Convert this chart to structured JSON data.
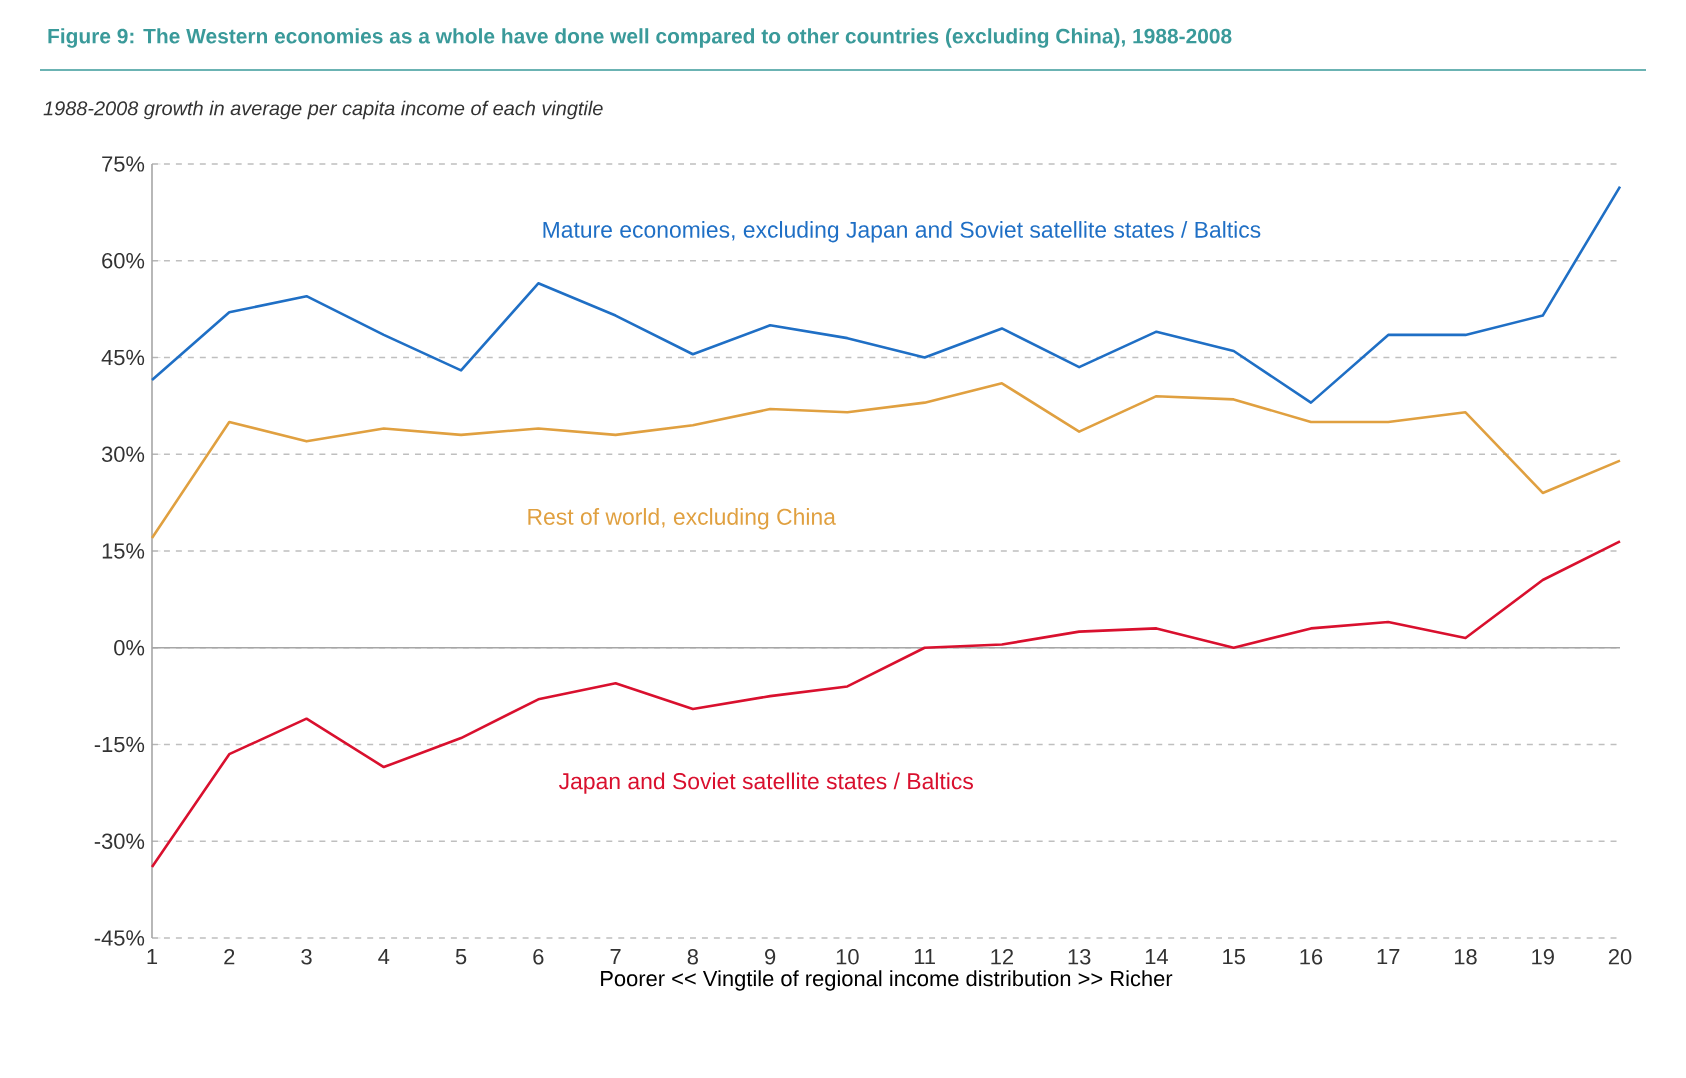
{
  "chart_data": {
    "type": "line",
    "title": "Figure 9:  The Western economies as a whole have done well compared to other countries (excluding China), 1988-2008",
    "subtitle": "1988-2008 growth in average per capita income of each vingtile",
    "xlabel": "Poorer    <<    Vingtile of regional income distribution    >>    Richer",
    "x": [
      1,
      2,
      3,
      4,
      5,
      6,
      7,
      8,
      9,
      10,
      11,
      12,
      13,
      14,
      15,
      16,
      17,
      18,
      19,
      20
    ],
    "xlim": [
      1,
      20
    ],
    "xticks": [
      1,
      2,
      3,
      4,
      5,
      6,
      7,
      8,
      9,
      10,
      11,
      12,
      13,
      14,
      15,
      16,
      17,
      18,
      19,
      20
    ],
    "ylim": [
      -45,
      75
    ],
    "yticks": [
      {
        "value": -45,
        "label": "-45%"
      },
      {
        "value": -30,
        "label": "-30%"
      },
      {
        "value": -15,
        "label": "-15%"
      },
      {
        "value": 0,
        "label": "0%"
      },
      {
        "value": 15,
        "label": "15%"
      },
      {
        "value": 30,
        "label": "30%"
      },
      {
        "value": 45,
        "label": "45%"
      },
      {
        "value": 60,
        "label": "60%"
      },
      {
        "value": 75,
        "label": "75%"
      }
    ],
    "grid": "y",
    "marker": "none",
    "line_style": "solid",
    "series": [
      {
        "name": "Mature economies, excluding Japan and Soviet satellite states / Baltics",
        "color": "#1f6fc5",
        "values": [
          41.5,
          52,
          54.5,
          48.5,
          43,
          56.5,
          51.5,
          45.5,
          50,
          48,
          45,
          49.5,
          43.5,
          49,
          46,
          38,
          48.5,
          48.5,
          51.5,
          71.5
        ]
      },
      {
        "name": "Rest of world, excluding China",
        "color": "#e0a040",
        "values": [
          17,
          35,
          32,
          34,
          33,
          34,
          33,
          34.5,
          37,
          36.5,
          38,
          41,
          33.5,
          39,
          38.5,
          35,
          35,
          36.5,
          24,
          29
        ]
      },
      {
        "name": "Japan and Soviet satellite states / Baltics",
        "color": "#d9102e",
        "values": [
          -34,
          -16.5,
          -11,
          -18.5,
          -14,
          -8,
          -5.5,
          -9.5,
          -7.5,
          -6,
          0,
          0.5,
          2.5,
          3,
          0,
          3,
          4,
          1.5,
          10.5,
          16.5
        ]
      }
    ]
  }
}
